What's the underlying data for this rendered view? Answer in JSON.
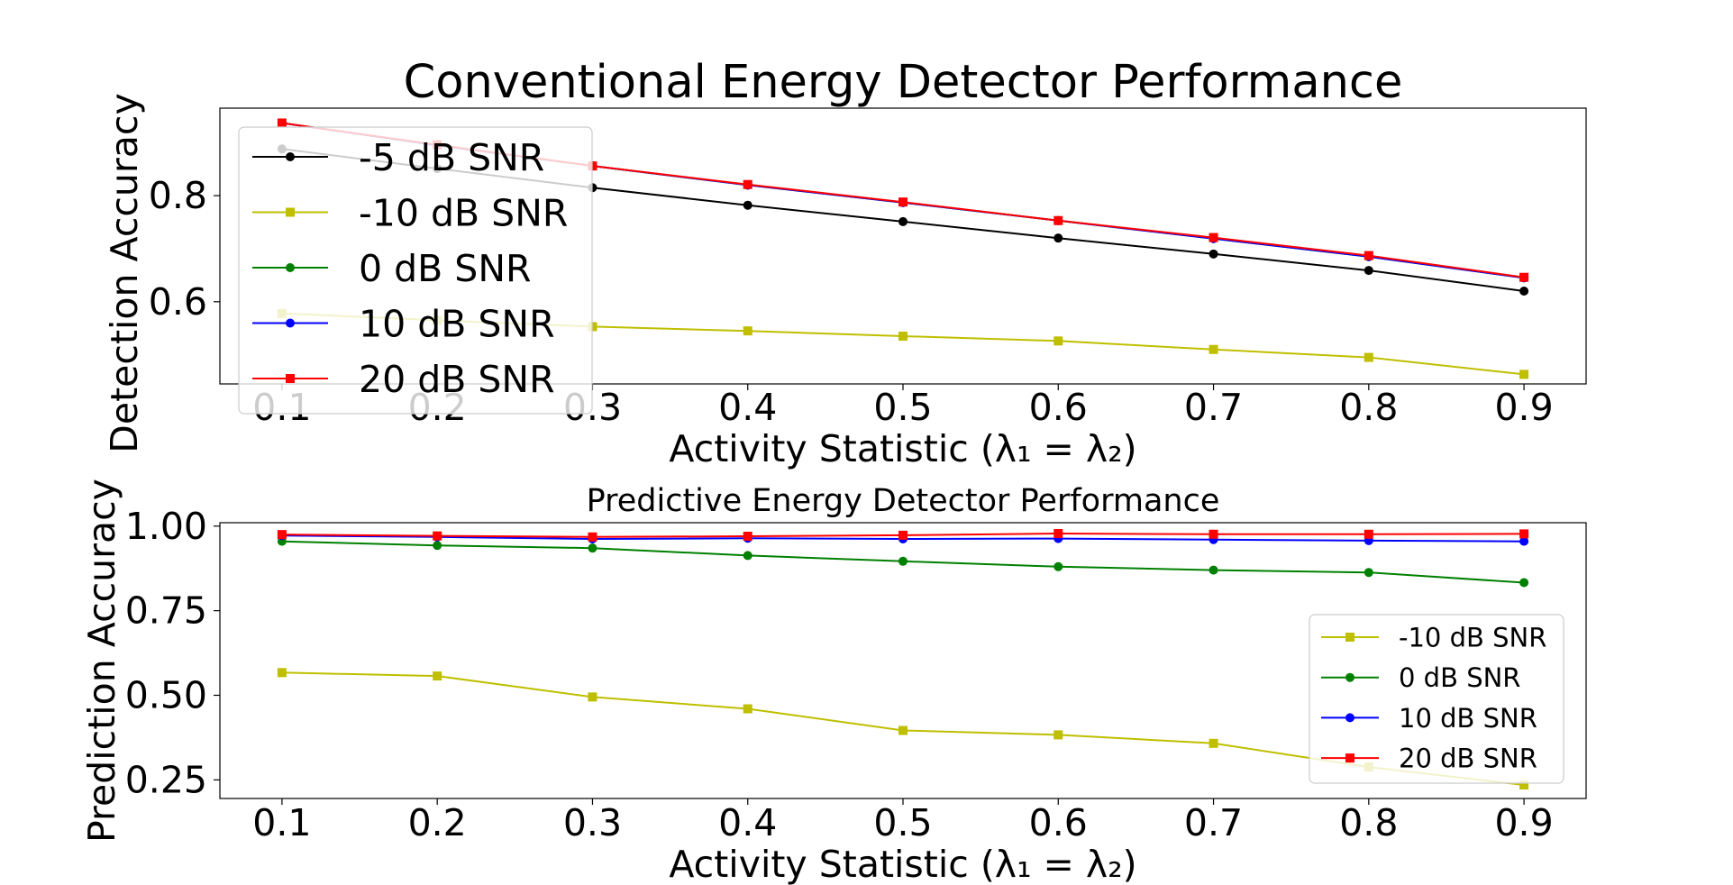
{
  "chart_data": [
    {
      "type": "line",
      "title": "Conventional Energy Detector Performance",
      "xlabel": "Activity Statistic (λ₁ = λ₂)",
      "ylabel": "Detection Accuracy",
      "xlim": [
        0.06,
        0.94
      ],
      "ylim": [
        0.445,
        0.965
      ],
      "xticks": [
        0.1,
        0.2,
        0.3,
        0.4,
        0.5,
        0.6,
        0.7,
        0.8,
        0.9
      ],
      "xtick_labels": [
        "0.1",
        "0.2",
        "0.3",
        "0.4",
        "0.5",
        "0.6",
        "0.7",
        "0.8",
        "0.9"
      ],
      "yticks": [
        0.6,
        0.8
      ],
      "ytick_labels": [
        "0.6",
        "0.8"
      ],
      "legend_position": "upper-left",
      "x": [
        0.1,
        0.2,
        0.3,
        0.4,
        0.5,
        0.6,
        0.7,
        0.8,
        0.9
      ],
      "series": [
        {
          "name": "-5 dB SNR",
          "color": "#000000",
          "marker": "circle",
          "values": [
            0.888,
            0.851,
            0.815,
            0.782,
            0.751,
            0.72,
            0.69,
            0.659,
            0.62
          ]
        },
        {
          "name": "-10 dB SNR",
          "color": "#bfbf00",
          "marker": "square",
          "values": [
            0.578,
            0.565,
            0.553,
            0.545,
            0.535,
            0.526,
            0.51,
            0.495,
            0.463
          ]
        },
        {
          "name": "0 dB SNR",
          "color": "#008000",
          "marker": "circle",
          "values": [
            0.937,
            0.895,
            0.856,
            0.82,
            0.787,
            0.753,
            0.719,
            0.685,
            0.645
          ]
        },
        {
          "name": "10 dB SNR",
          "color": "#0000ff",
          "marker": "circle",
          "values": [
            0.937,
            0.895,
            0.856,
            0.82,
            0.787,
            0.753,
            0.719,
            0.685,
            0.645
          ]
        },
        {
          "name": "20 dB SNR",
          "color": "#ff0000",
          "marker": "square",
          "values": [
            0.937,
            0.896,
            0.856,
            0.821,
            0.788,
            0.753,
            0.721,
            0.687,
            0.646
          ]
        }
      ]
    },
    {
      "type": "line",
      "title": "Predictive Energy Detector Performance",
      "xlabel": "Activity Statistic (λ₁ = λ₂)",
      "ylabel": "Prediction Accuracy",
      "xlim": [
        0.06,
        0.94
      ],
      "ylim": [
        0.195,
        1.01
      ],
      "xticks": [
        0.1,
        0.2,
        0.3,
        0.4,
        0.5,
        0.6,
        0.7,
        0.8,
        0.9
      ],
      "xtick_labels": [
        "0.1",
        "0.2",
        "0.3",
        "0.4",
        "0.5",
        "0.6",
        "0.7",
        "0.8",
        "0.9"
      ],
      "yticks": [
        0.25,
        0.5,
        0.75,
        1.0
      ],
      "ytick_labels": [
        "0.25",
        "0.50",
        "0.75",
        "1.00"
      ],
      "legend_position": "lower-right",
      "x": [
        0.1,
        0.2,
        0.3,
        0.4,
        0.5,
        0.6,
        0.7,
        0.8,
        0.9
      ],
      "series": [
        {
          "name": "-10 dB SNR",
          "color": "#bfbf00",
          "marker": "square",
          "values": [
            0.567,
            0.557,
            0.495,
            0.46,
            0.396,
            0.383,
            0.358,
            0.288,
            0.235
          ]
        },
        {
          "name": "0 dB SNR",
          "color": "#008000",
          "marker": "circle",
          "values": [
            0.955,
            0.943,
            0.935,
            0.913,
            0.896,
            0.88,
            0.87,
            0.863,
            0.833
          ]
        },
        {
          "name": "10 dB SNR",
          "color": "#0000ff",
          "marker": "circle",
          "values": [
            0.972,
            0.968,
            0.962,
            0.964,
            0.962,
            0.963,
            0.96,
            0.957,
            0.955
          ]
        },
        {
          "name": "20 dB SNR",
          "color": "#ff0000",
          "marker": "square",
          "values": [
            0.975,
            0.971,
            0.968,
            0.97,
            0.973,
            0.978,
            0.976,
            0.976,
            0.977
          ]
        }
      ]
    }
  ]
}
